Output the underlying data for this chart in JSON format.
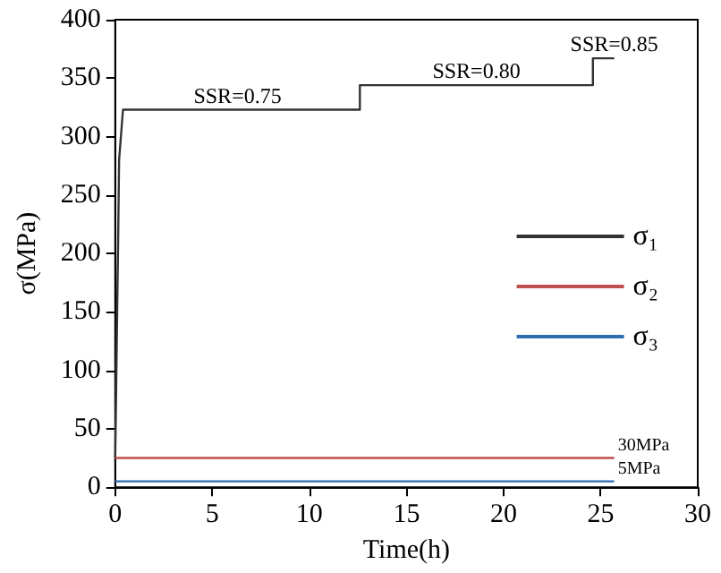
{
  "chart_data": {
    "type": "line",
    "xlabel": "Time(h)",
    "ylabel": "σ(MPa)",
    "xlim": [
      0,
      30
    ],
    "xticks": [
      0,
      5,
      10,
      15,
      20,
      25,
      30
    ],
    "ylim": [
      0,
      400
    ],
    "yticks": [
      0,
      50,
      100,
      150,
      200,
      250,
      300,
      350,
      400
    ],
    "grid": false,
    "legend": "right",
    "marker": "none",
    "line_style": "solid",
    "series": [
      {
        "name": "σ₁",
        "color": "#333333",
        "x": [
          0,
          0.05,
          0.1,
          0.15,
          0.2,
          0.4,
          12.6,
          12.6,
          24.6,
          24.6,
          25.7
        ],
        "values": [
          25,
          85,
          150,
          210,
          280,
          323,
          323,
          344,
          344,
          367,
          367
        ]
      },
      {
        "name": "σ₂",
        "color": "#c0504d",
        "x": [
          0,
          25.7
        ],
        "values": [
          25,
          25
        ]
      },
      {
        "name": "σ₃",
        "color": "#2e6db4",
        "x": [
          0,
          25.7
        ],
        "values": [
          5,
          5
        ]
      }
    ],
    "annotations": [
      {
        "text": "SSR=0.75",
        "x": 6.3,
        "y": 323
      },
      {
        "text": "SSR=0.80",
        "x": 18.6,
        "y": 344
      },
      {
        "text": "SSR=0.85",
        "x": 25.7,
        "y": 367
      },
      {
        "text": "30MPa",
        "x": 25.7,
        "y": 25
      },
      {
        "text": "5MPa",
        "x": 25.7,
        "y": 5
      }
    ]
  }
}
